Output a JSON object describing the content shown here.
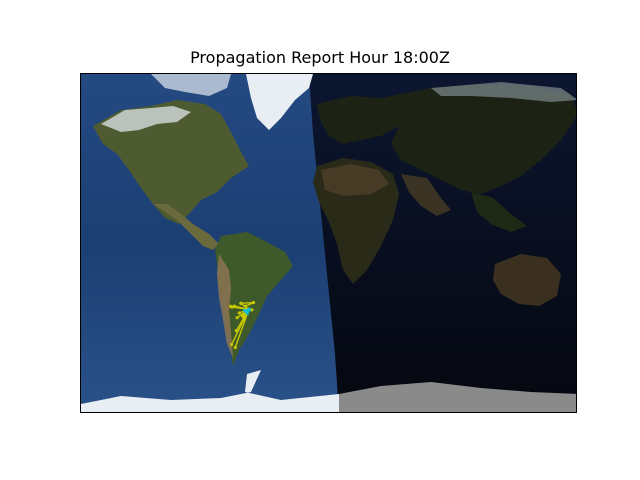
{
  "title": "Propagation Report Hour 18:00Z",
  "map": {
    "projection": "equirectangular",
    "lon_range": [
      -180,
      180
    ],
    "lat_range": [
      -90,
      90
    ],
    "day_region": "daylight over the Americas and western Atlantic",
    "night_region": "night over Europe, Africa, Asia and Australia"
  },
  "colors": {
    "ocean_day": "#1c3f73",
    "ocean_night": "#070c19",
    "land_day": "#4e5a30",
    "desert_day": "#8c7652",
    "land_night": "#1d2314",
    "desert_night": "#4a3d28",
    "ice": "#e8eef4",
    "ice_night": "#8a8a8a",
    "path_yellow": "#c8c800",
    "path_cyan": "#17becf"
  },
  "propagation": {
    "spots": [
      {
        "from": [
          -58.4,
          -34.6
        ],
        "to": [
          -63.0,
          -38.0
        ],
        "color": "yellow"
      },
      {
        "from": [
          -58.4,
          -34.6
        ],
        "to": [
          -64.2,
          -31.4
        ],
        "color": "yellow"
      },
      {
        "from": [
          -58.4,
          -34.6
        ],
        "to": [
          -68.8,
          -32.9
        ],
        "color": "yellow"
      },
      {
        "from": [
          -58.4,
          -34.6
        ],
        "to": [
          -71.6,
          -33.0
        ],
        "color": "yellow"
      },
      {
        "from": [
          -58.4,
          -34.6
        ],
        "to": [
          -70.6,
          -33.4
        ],
        "color": "yellow"
      },
      {
        "from": [
          -58.4,
          -34.6
        ],
        "to": [
          -65.3,
          -36.5
        ],
        "color": "yellow"
      },
      {
        "from": [
          -58.4,
          -34.6
        ],
        "to": [
          -66.9,
          -39.0
        ],
        "color": "yellow"
      },
      {
        "from": [
          -58.4,
          -34.6
        ],
        "to": [
          -62.3,
          -38.7
        ],
        "color": "yellow"
      },
      {
        "from": [
          -58.4,
          -34.6
        ],
        "to": [
          -67.5,
          -45.9
        ],
        "color": "yellow"
      },
      {
        "from": [
          -58.4,
          -34.6
        ],
        "to": [
          -68.3,
          -54.8
        ],
        "color": "yellow"
      },
      {
        "from": [
          -58.4,
          -34.6
        ],
        "to": [
          -70.9,
          -53.2
        ],
        "color": "yellow"
      },
      {
        "from": [
          -58.4,
          -34.6
        ],
        "to": [
          -56.2,
          -34.9
        ],
        "color": "yellow"
      },
      {
        "from": [
          -55.0,
          -31.0
        ],
        "to": [
          -60.7,
          -32.9
        ],
        "color": "yellow"
      },
      {
        "from": [
          -55.0,
          -31.0
        ],
        "to": [
          -64.2,
          -31.4
        ],
        "color": "yellow"
      },
      {
        "from": [
          -58.4,
          -34.6
        ],
        "to": [
          -60.0,
          -36.0
        ],
        "color": "cyan"
      },
      {
        "from": [
          -58.4,
          -34.6
        ],
        "to": [
          -61.5,
          -35.2
        ],
        "color": "cyan"
      },
      {
        "from": [
          -58.4,
          -34.6
        ],
        "to": [
          -59.5,
          -36.8
        ],
        "color": "cyan"
      },
      {
        "from": [
          -57.9,
          -34.9
        ],
        "to": [
          -60.7,
          -35.6
        ],
        "color": "cyan"
      }
    ]
  }
}
